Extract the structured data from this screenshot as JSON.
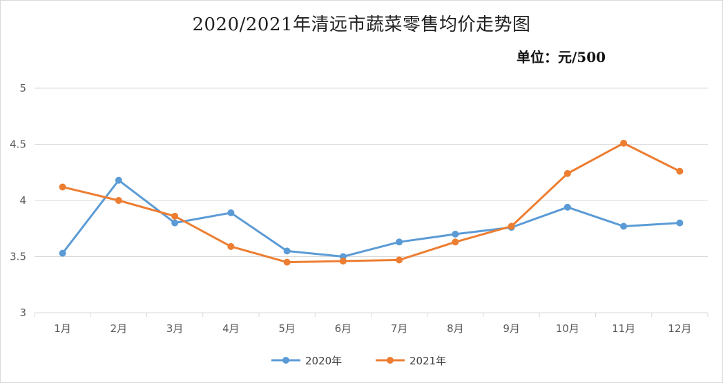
{
  "colors": {
    "series_2020": "#5b9bd5",
    "series_2021": "#ed7d31",
    "grid": "#d9d9d9",
    "text": "#595959"
  },
  "chart_data": {
    "type": "line",
    "title": "2020/2021年清远市蔬菜零售均价走势图",
    "unit_label": "单位：元/500",
    "categories": [
      "1月",
      "2月",
      "3月",
      "4月",
      "5月",
      "6月",
      "7月",
      "8月",
      "9月",
      "10月",
      "11月",
      "12月"
    ],
    "series": [
      {
        "name": "2020年",
        "values": [
          3.53,
          4.18,
          3.8,
          3.89,
          3.55,
          3.5,
          3.63,
          3.7,
          3.76,
          3.94,
          3.77,
          3.8
        ]
      },
      {
        "name": "2021年",
        "values": [
          4.12,
          4.0,
          3.86,
          3.59,
          3.45,
          3.46,
          3.47,
          3.63,
          3.77,
          4.24,
          4.51,
          4.26
        ]
      }
    ],
    "ylim": [
      3,
      5
    ],
    "yticks": [
      "3",
      "3.5",
      "4",
      "4.5",
      "5"
    ],
    "yticks_values": [
      3,
      3.5,
      4,
      4.5,
      5
    ],
    "grid": true,
    "legend_position": "bottom"
  }
}
